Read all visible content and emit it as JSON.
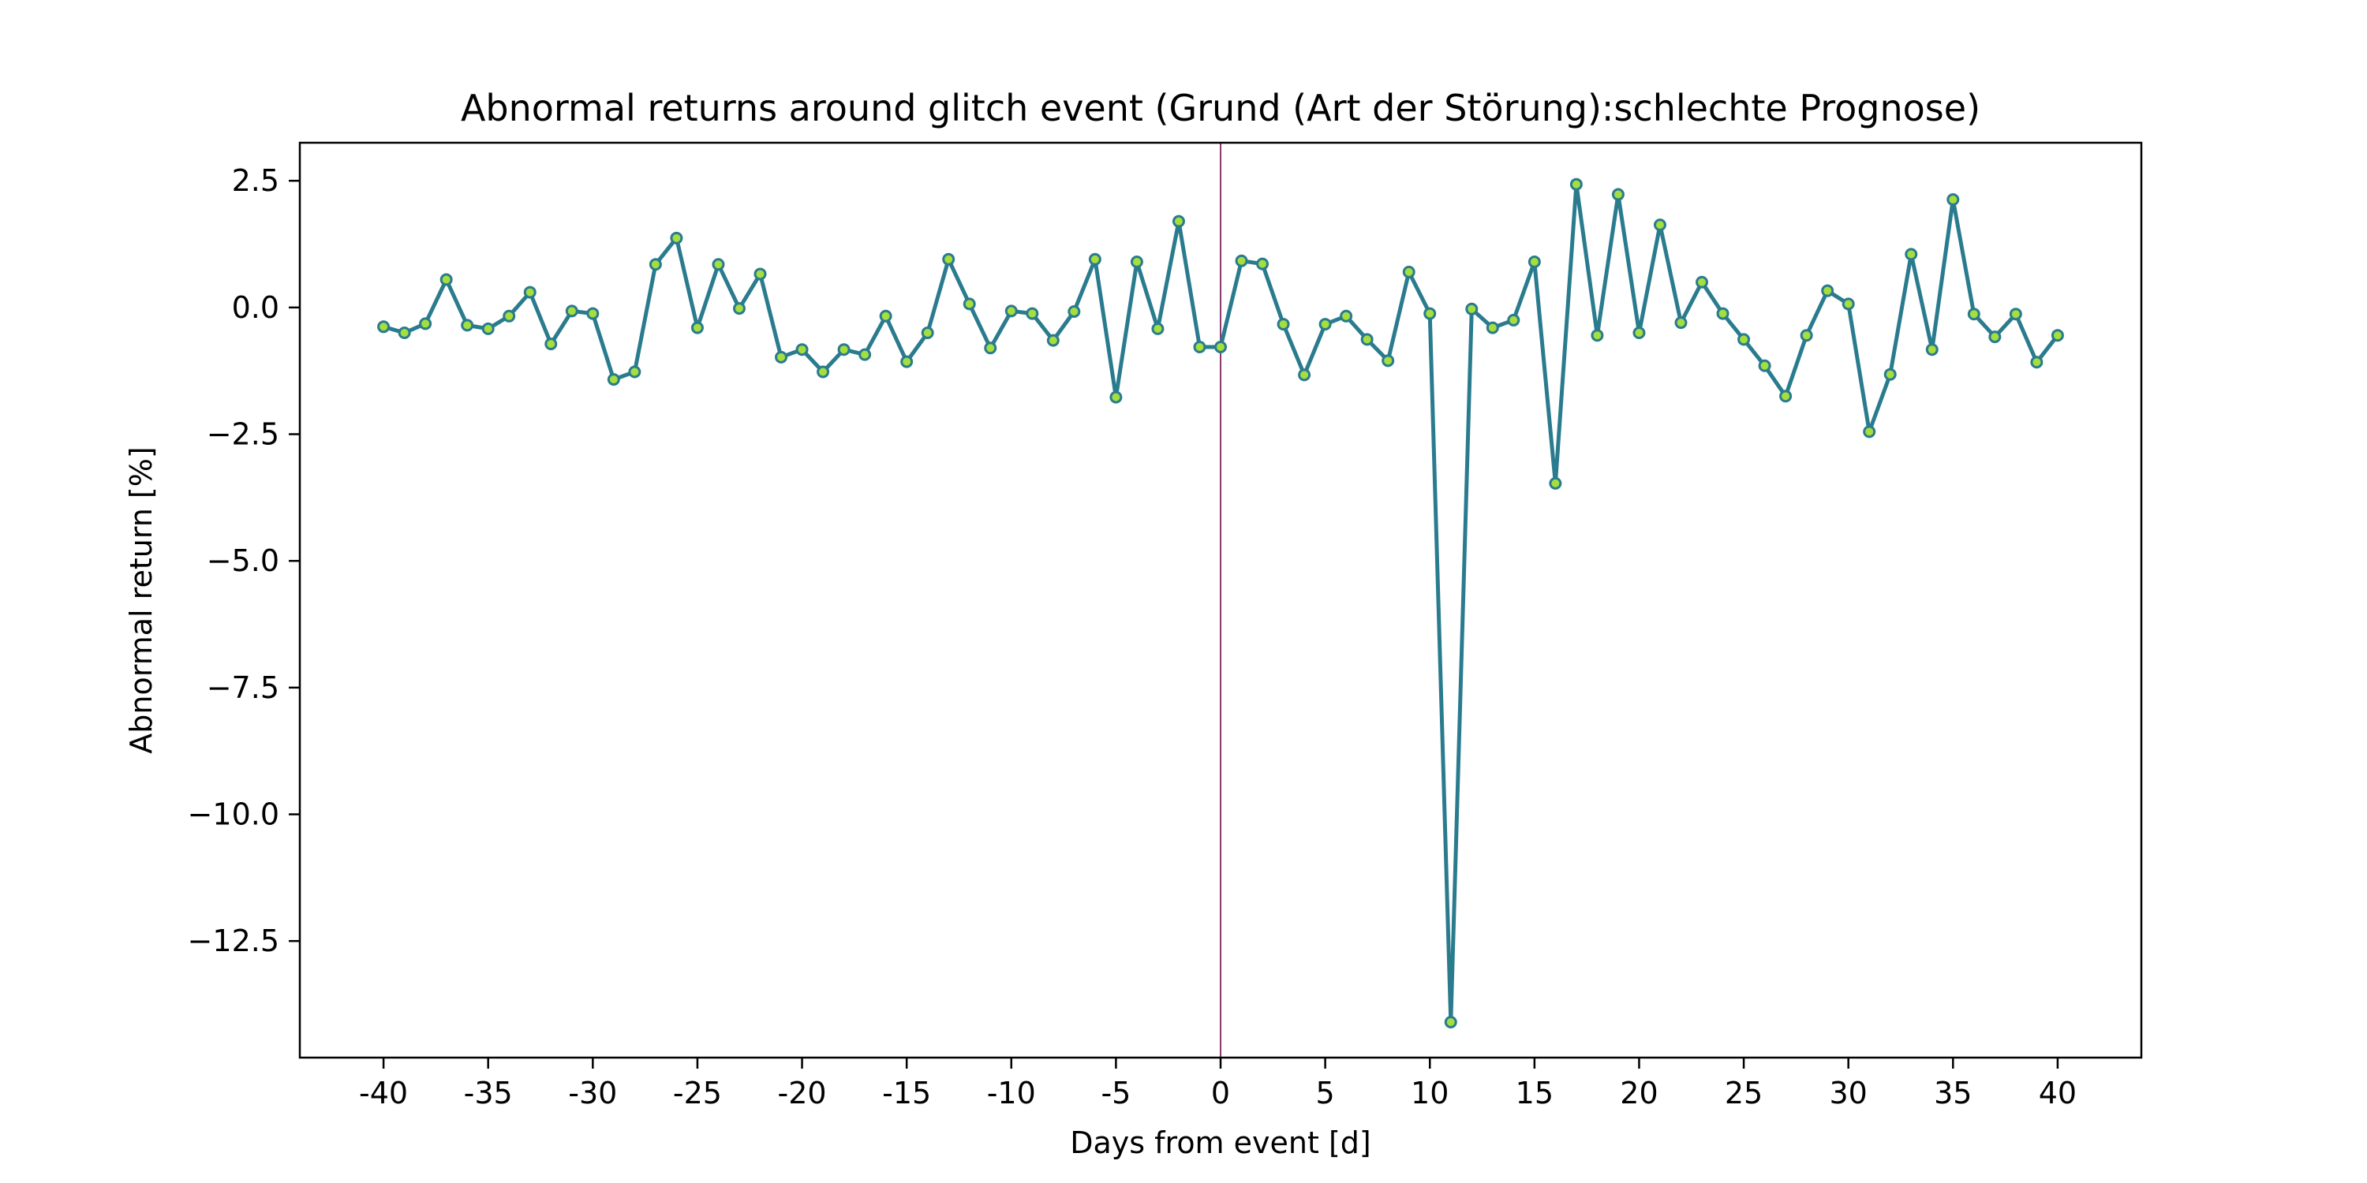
{
  "chart_data": {
    "type": "line",
    "title": "Abnormal returns around glitch event (Grund (Art der Störung):schlechte Prognose)",
    "xlabel": "Days from event [d]",
    "ylabel": "Abnormal return [%]",
    "xlim": [
      -44,
      44
    ],
    "ylim": [
      -14.8,
      3.25
    ],
    "x_ticks": [
      -40,
      -35,
      -30,
      -25,
      -20,
      -15,
      -10,
      -5,
      0,
      5,
      10,
      15,
      20,
      25,
      30,
      35,
      40
    ],
    "x_tick_labels": [
      "-40",
      "-35",
      "-30",
      "-25",
      "-20",
      "-15",
      "-10",
      "-5",
      "0",
      "5",
      "10",
      "15",
      "20",
      "25",
      "30",
      "35",
      "40"
    ],
    "y_ticks": [
      2.5,
      0.0,
      -2.5,
      -5.0,
      -7.5,
      -10.0,
      -12.5
    ],
    "y_tick_labels": [
      "2.5",
      "0.0",
      "−2.5",
      "−5.0",
      "−7.5",
      "−10.0",
      "−12.5"
    ],
    "grid": false,
    "event_line": {
      "x": 0,
      "color": "#8b3a6e"
    },
    "colors": {
      "line": "#2a7b8e",
      "marker_fill": "#a5de3f",
      "marker_edge": "#2a7b8e"
    },
    "series": [
      {
        "x": [
          -40,
          -39,
          -38,
          -37,
          -36,
          -35,
          -34,
          -33,
          -32,
          -31,
          -30,
          -29,
          -28,
          -27,
          -26,
          -25,
          -24,
          -23,
          -22,
          -21,
          -20,
          -19,
          -18,
          -17,
          -16,
          -15,
          -14,
          -13,
          -12,
          -11,
          -10,
          -9,
          -8,
          -7,
          -6,
          -5,
          -4,
          -3,
          -2,
          -1,
          0,
          1,
          2,
          3,
          4,
          5,
          6,
          7,
          8,
          9,
          10,
          11,
          12,
          13,
          14,
          15,
          16,
          17,
          18,
          19,
          20,
          21,
          22,
          23,
          24,
          25,
          26,
          27,
          28,
          29,
          30,
          31,
          32,
          33,
          34,
          35,
          36,
          37,
          38,
          39,
          40
        ],
        "values": [
          -0.38,
          -0.5,
          -0.32,
          0.55,
          -0.35,
          -0.42,
          -0.17,
          0.3,
          -0.72,
          -0.07,
          -0.12,
          -1.42,
          -1.27,
          0.85,
          1.37,
          -0.4,
          0.85,
          -0.02,
          0.66,
          -0.98,
          -0.83,
          -1.27,
          -0.83,
          -0.93,
          -0.17,
          -1.07,
          -0.5,
          0.95,
          0.07,
          -0.8,
          -0.07,
          -0.12,
          -0.65,
          -0.08,
          0.95,
          -1.77,
          0.9,
          -0.42,
          1.7,
          -0.78,
          -0.78,
          0.92,
          0.86,
          -0.33,
          -1.33,
          -0.33,
          -0.17,
          -0.63,
          -1.05,
          0.7,
          -0.12,
          -14.1,
          -0.03,
          -0.4,
          -0.25,
          0.9,
          -3.47,
          2.43,
          -0.55,
          2.23,
          -0.5,
          1.63,
          -0.3,
          0.5,
          -0.12,
          -0.63,
          -1.15,
          -1.75,
          -0.55,
          0.33,
          0.07,
          -2.45,
          -1.32,
          1.05,
          -0.83,
          2.13,
          -0.13,
          -0.58,
          -0.13,
          -1.08,
          -0.55
        ]
      }
    ]
  }
}
